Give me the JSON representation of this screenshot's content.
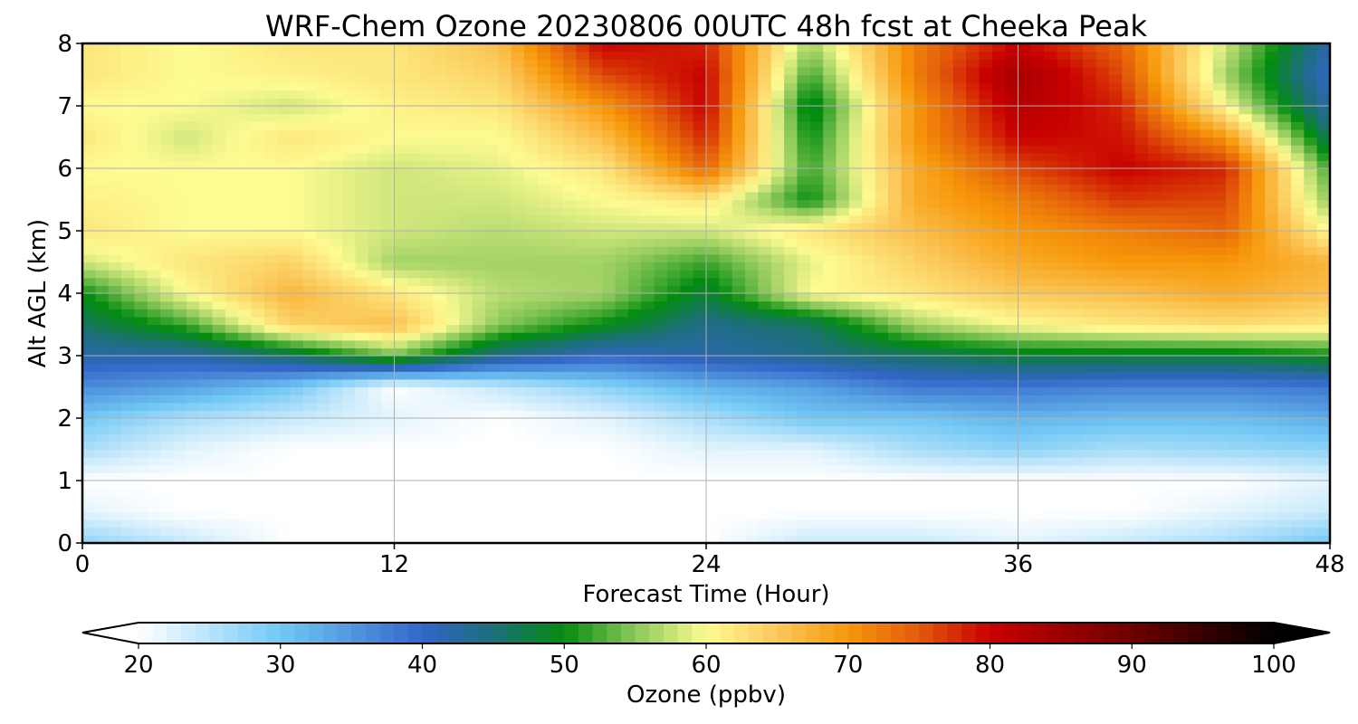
{
  "chart_data": {
    "type": "heatmap",
    "title": "WRF-Chem Ozone  20230806 00UTC 48h fcst at Cheeka Peak",
    "xlabel": "Forecast Time (Hour)",
    "ylabel": "Alt AGL (km)",
    "xlim": [
      0,
      48
    ],
    "ylim": [
      0,
      8
    ],
    "x_ticks": [
      "0",
      "12",
      "24",
      "36",
      "48"
    ],
    "y_ticks": [
      "0",
      "1",
      "2",
      "3",
      "4",
      "5",
      "6",
      "7",
      "8"
    ],
    "grid": true,
    "x_grid": [
      0,
      4,
      8,
      12,
      16,
      20,
      24,
      28,
      32,
      36,
      40,
      44,
      48
    ],
    "y_grid": [
      0,
      0.5,
      1,
      1.5,
      2,
      2.5,
      3,
      3.5,
      4,
      4.5,
      5,
      5.5,
      6,
      6.5,
      7,
      7.5,
      8
    ],
    "z_values": [
      [
        28,
        24,
        20,
        20,
        20,
        20,
        20,
        24,
        24,
        22,
        24,
        26,
        30
      ],
      [
        22,
        20,
        20,
        20,
        20,
        20,
        20,
        20,
        20,
        20,
        20,
        22,
        24
      ],
      [
        20,
        20,
        20,
        20,
        20,
        20,
        20,
        20,
        20,
        20,
        20,
        20,
        22
      ],
      [
        26,
        22,
        20,
        20,
        20,
        20,
        22,
        22,
        26,
        28,
        26,
        27,
        28
      ],
      [
        30,
        26,
        24,
        22,
        20,
        22,
        26,
        30,
        30,
        32,
        31,
        31,
        33
      ],
      [
        36,
        34,
        30,
        20,
        24,
        28,
        32,
        34,
        38,
        38,
        37,
        37,
        38
      ],
      [
        42,
        42,
        46,
        54,
        44,
        40,
        42,
        44,
        46,
        48,
        48,
        48,
        50
      ],
      [
        46,
        52,
        64,
        66,
        55,
        50,
        44,
        46,
        56,
        60,
        62,
        63,
        62
      ],
      [
        50,
        60,
        67,
        62,
        57,
        56,
        48,
        60,
        62,
        65,
        66,
        68,
        66
      ],
      [
        58,
        62,
        64,
        56,
        56,
        56,
        52,
        59,
        64,
        68,
        70,
        70,
        67
      ],
      [
        62,
        60,
        60,
        58,
        57,
        58,
        58,
        62,
        66,
        70,
        72,
        74,
        60
      ],
      [
        61,
        60,
        60,
        58,
        58,
        60,
        62,
        50,
        68,
        72,
        77,
        76,
        55
      ],
      [
        60,
        60,
        60,
        58,
        59,
        62,
        74,
        52,
        68,
        76,
        80,
        78,
        52
      ],
      [
        62,
        58,
        62,
        60,
        60,
        66,
        78,
        50,
        70,
        80,
        79,
        70,
        46
      ],
      [
        60,
        60,
        58,
        61,
        62,
        70,
        80,
        48,
        70,
        82,
        78,
        60,
        42
      ],
      [
        62,
        60,
        61,
        62,
        64,
        76,
        80,
        52,
        72,
        84,
        76,
        56,
        40
      ],
      [
        62,
        60,
        62,
        62,
        66,
        80,
        78,
        56,
        72,
        80,
        74,
        58,
        42
      ]
    ],
    "colorbar": {
      "label": "Ozone  (ppbv)",
      "min": 20,
      "max": 100,
      "ticks": [
        "20",
        "30",
        "40",
        "50",
        "60",
        "70",
        "80",
        "90",
        "100"
      ],
      "extend": "both"
    },
    "colormap": [
      [
        20,
        "#ffffff"
      ],
      [
        30,
        "#72c8f5"
      ],
      [
        40,
        "#3266c8"
      ],
      [
        45,
        "#1c6e7a"
      ],
      [
        50,
        "#038c0f"
      ],
      [
        55,
        "#8cc85a"
      ],
      [
        60,
        "#fdfb92"
      ],
      [
        65,
        "#fbc85a"
      ],
      [
        70,
        "#f7980a"
      ],
      [
        75,
        "#e35a0a"
      ],
      [
        80,
        "#c80000"
      ],
      [
        90,
        "#6e0000"
      ],
      [
        100,
        "#000000"
      ]
    ]
  }
}
